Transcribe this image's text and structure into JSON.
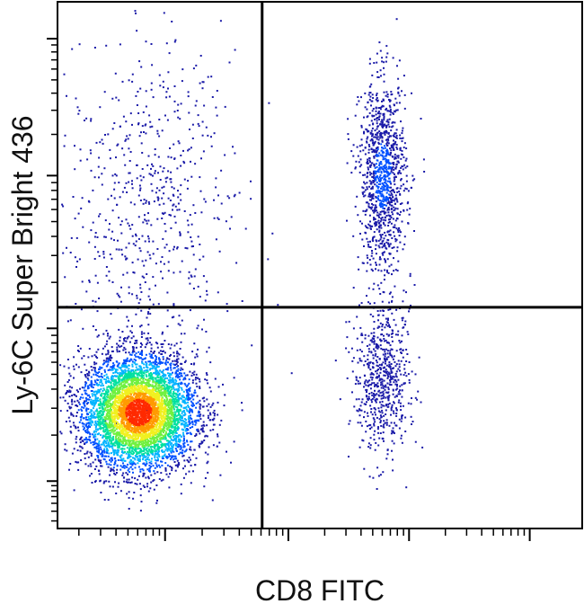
{
  "chart_data": {
    "type": "scatter",
    "style": "flow-cytometry density dot plot (pseudocolor)",
    "xlabel": "CD8 FITC",
    "ylabel": "Ly-6C Super Bright 436",
    "x_scale": "biexponential/log",
    "y_scale": "biexponential/log",
    "tick_labels": "none",
    "grid": false,
    "quadrant_gates": {
      "x_gate": 0.39,
      "y_gate": 0.42
    },
    "populations": [
      {
        "name": "",
        "quadrant": "lower-left",
        "center": [
          0.155,
          0.22
        ],
        "spread": [
          0.055,
          0.055
        ],
        "density": "high"
      },
      {
        "name": "",
        "quadrant": "upper-left",
        "center": [
          0.17,
          0.62
        ],
        "spread": [
          0.07,
          0.13
        ],
        "density": "low"
      },
      {
        "name": "",
        "quadrant": "upper-right",
        "center": [
          0.62,
          0.67
        ],
        "spread": [
          0.022,
          0.09
        ],
        "density": "medium"
      },
      {
        "name": "",
        "quadrant": "lower-right",
        "center": [
          0.62,
          0.29
        ],
        "spread": [
          0.022,
          0.06
        ],
        "density": "low"
      }
    ],
    "density_colors": [
      "#1a1aa8",
      "#0050ff",
      "#00b4ff",
      "#00e0a0",
      "#70f040",
      "#f0f020",
      "#ff9a00",
      "#ff2a00"
    ]
  }
}
